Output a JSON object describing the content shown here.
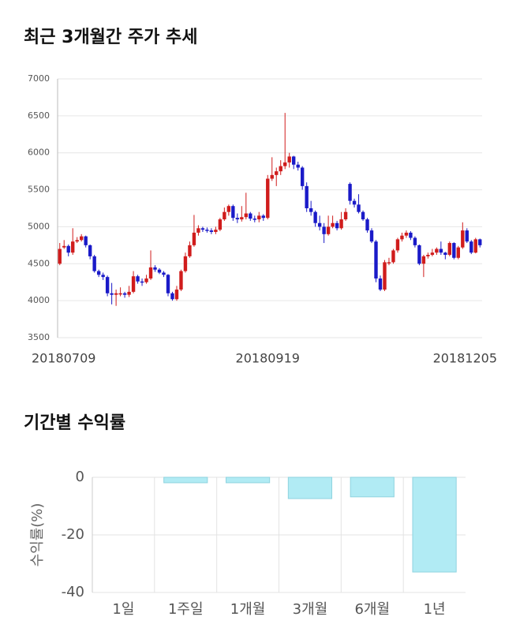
{
  "chart_data": [
    {
      "type": "candlestick",
      "title": "최근 3개월간 주가 추세",
      "up_color": "#d01c1c",
      "down_color": "#1a1ac8",
      "grid": true,
      "ylim": [
        3500,
        7000
      ],
      "yticks": [
        3500,
        4000,
        4500,
        5000,
        5500,
        6000,
        6500,
        7000
      ],
      "categories": [
        "20180709",
        null,
        null,
        null,
        null,
        null,
        null,
        null,
        null,
        null,
        null,
        null,
        null,
        null,
        null,
        null,
        null,
        null,
        null,
        null,
        null,
        null,
        null,
        null,
        null,
        null,
        null,
        null,
        null,
        null,
        null,
        null,
        null,
        null,
        null,
        null,
        null,
        null,
        null,
        null,
        null,
        null,
        null,
        null,
        null,
        null,
        null,
        null,
        "20180919",
        null,
        null,
        null,
        null,
        null,
        null,
        null,
        null,
        null,
        null,
        null,
        null,
        null,
        null,
        null,
        null,
        null,
        null,
        null,
        null,
        null,
        null,
        null,
        null,
        null,
        null,
        null,
        null,
        null,
        null,
        null,
        null,
        null,
        null,
        null,
        null,
        null,
        null,
        null,
        null,
        null,
        null,
        null,
        null,
        null,
        null,
        null,
        null,
        "20181205"
      ],
      "ohlc": [
        [
          4500,
          4780,
          4480,
          4700
        ],
        [
          4720,
          4820,
          4700,
          4740
        ],
        [
          4740,
          4760,
          4600,
          4650
        ],
        [
          4650,
          4980,
          4620,
          4800
        ],
        [
          4800,
          4860,
          4780,
          4820
        ],
        [
          4820,
          4900,
          4800,
          4870
        ],
        [
          4870,
          4880,
          4720,
          4750
        ],
        [
          4750,
          4760,
          4560,
          4600
        ],
        [
          4600,
          4620,
          4380,
          4400
        ],
        [
          4400,
          4420,
          4320,
          4350
        ],
        [
          4350,
          4380,
          4280,
          4320
        ],
        [
          4320,
          4340,
          4060,
          4100
        ],
        [
          4100,
          4240,
          3950,
          4080
        ],
        [
          4080,
          4150,
          3930,
          4100
        ],
        [
          4100,
          4180,
          4060,
          4100
        ],
        [
          4100,
          4120,
          4040,
          4080
        ],
        [
          4080,
          4200,
          4050,
          4120
        ],
        [
          4120,
          4400,
          4100,
          4330
        ],
        [
          4330,
          4350,
          4230,
          4260
        ],
        [
          4260,
          4300,
          4200,
          4250
        ],
        [
          4250,
          4350,
          4230,
          4300
        ],
        [
          4300,
          4680,
          4280,
          4450
        ],
        [
          4450,
          4480,
          4390,
          4420
        ],
        [
          4420,
          4440,
          4360,
          4380
        ],
        [
          4380,
          4400,
          4320,
          4350
        ],
        [
          4350,
          4360,
          4060,
          4100
        ],
        [
          4100,
          4120,
          4000,
          4020
        ],
        [
          4020,
          4200,
          4000,
          4150
        ],
        [
          4150,
          4420,
          4130,
          4400
        ],
        [
          4400,
          4650,
          4380,
          4600
        ],
        [
          4600,
          4800,
          4580,
          4750
        ],
        [
          4750,
          5160,
          4730,
          4920
        ],
        [
          4920,
          5020,
          4880,
          4980
        ],
        [
          4980,
          5000,
          4930,
          4960
        ],
        [
          4960,
          4990,
          4920,
          4950
        ],
        [
          4950,
          4980,
          4900,
          4930
        ],
        [
          4930,
          5000,
          4900,
          4960
        ],
        [
          4960,
          5120,
          4940,
          5100
        ],
        [
          5100,
          5260,
          5080,
          5200
        ],
        [
          5200,
          5300,
          5150,
          5280
        ],
        [
          5280,
          5300,
          5080,
          5120
        ],
        [
          5120,
          5180,
          5050,
          5100
        ],
        [
          5100,
          5280,
          5070,
          5130
        ],
        [
          5130,
          5460,
          5100,
          5180
        ],
        [
          5180,
          5200,
          5080,
          5110
        ],
        [
          5110,
          5150,
          5060,
          5100
        ],
        [
          5100,
          5200,
          5060,
          5150
        ],
        [
          5150,
          5170,
          5080,
          5120
        ],
        [
          5120,
          5700,
          5100,
          5650
        ],
        [
          5650,
          5940,
          5620,
          5700
        ],
        [
          5700,
          5800,
          5550,
          5750
        ],
        [
          5750,
          5900,
          5700,
          5820
        ],
        [
          5820,
          6540,
          5780,
          5870
        ],
        [
          5870,
          6000,
          5800,
          5950
        ],
        [
          5950,
          5960,
          5780,
          5840
        ],
        [
          5840,
          5880,
          5760,
          5800
        ],
        [
          5800,
          5820,
          5500,
          5550
        ],
        [
          5550,
          5600,
          5200,
          5250
        ],
        [
          5250,
          5350,
          5150,
          5200
        ],
        [
          5200,
          5220,
          5000,
          5050
        ],
        [
          5050,
          5150,
          4950,
          5000
        ],
        [
          5000,
          5050,
          4780,
          4900
        ],
        [
          4900,
          5150,
          4880,
          5000
        ],
        [
          5000,
          5150,
          4980,
          5050
        ],
        [
          5050,
          5080,
          4950,
          4980
        ],
        [
          4980,
          5200,
          4960,
          5100
        ],
        [
          5100,
          5250,
          5080,
          5200
        ],
        [
          5580,
          5600,
          5300,
          5350
        ],
        [
          5350,
          5380,
          5260,
          5300
        ],
        [
          5300,
          5440,
          5180,
          5200
        ],
        [
          5200,
          5220,
          5080,
          5100
        ],
        [
          5100,
          5120,
          4920,
          4950
        ],
        [
          4950,
          4980,
          4780,
          4800
        ],
        [
          4800,
          4820,
          4250,
          4300
        ],
        [
          4300,
          4340,
          4130,
          4150
        ],
        [
          4150,
          4550,
          4130,
          4520
        ],
        [
          4520,
          4580,
          4480,
          4520
        ],
        [
          4520,
          4700,
          4500,
          4680
        ],
        [
          4680,
          4850,
          4650,
          4830
        ],
        [
          4830,
          4920,
          4800,
          4880
        ],
        [
          4880,
          4950,
          4850,
          4920
        ],
        [
          4920,
          4940,
          4820,
          4850
        ],
        [
          4850,
          4870,
          4720,
          4750
        ],
        [
          4750,
          4760,
          4480,
          4500
        ],
        [
          4500,
          4620,
          4320,
          4600
        ],
        [
          4600,
          4650,
          4570,
          4620
        ],
        [
          4620,
          4700,
          4600,
          4650
        ],
        [
          4650,
          4720,
          4620,
          4700
        ],
        [
          4700,
          4800,
          4620,
          4650
        ],
        [
          4650,
          4660,
          4560,
          4620
        ],
        [
          4620,
          4800,
          4600,
          4780
        ],
        [
          4780,
          4790,
          4560,
          4580
        ],
        [
          4580,
          4740,
          4560,
          4720
        ],
        [
          4720,
          5060,
          4700,
          4950
        ],
        [
          4950,
          4980,
          4780,
          4800
        ],
        [
          4800,
          4820,
          4630,
          4650
        ],
        [
          4650,
          4850,
          4640,
          4830
        ],
        [
          4830,
          4840,
          4720,
          4750
        ]
      ]
    },
    {
      "type": "bar",
      "title": "기간별 수익률",
      "y_label": "수익률(%)",
      "categories": [
        "1일",
        "1주일",
        "1개월",
        "3개월",
        "6개월",
        "1년"
      ],
      "values": [
        0,
        -1.9,
        -1.9,
        -7.4,
        -6.8,
        -32.9
      ],
      "color": "#b1ebf4",
      "edge_color": "#8fd3df",
      "grid": true,
      "ylim": [
        -40,
        0
      ],
      "yticks": [
        0,
        -20,
        -40
      ]
    }
  ]
}
